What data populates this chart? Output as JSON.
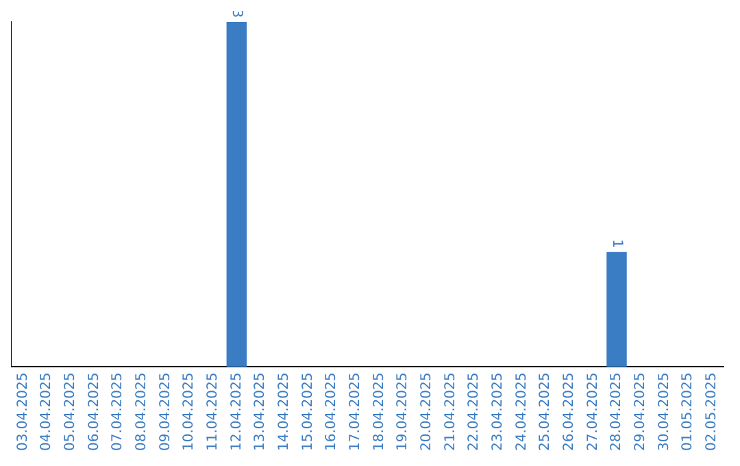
{
  "chart_data": {
    "type": "bar",
    "categories": [
      "03.04.2025",
      "04.04.2025",
      "05.04.2025",
      "06.04.2025",
      "07.04.2025",
      "08.04.2025",
      "09.04.2025",
      "10.04.2025",
      "11.04.2025",
      "12.04.2025",
      "13.04.2025",
      "14.04.2025",
      "15.04.2025",
      "16.04.2025",
      "17.04.2025",
      "18.04.2025",
      "19.04.2025",
      "20.04.2025",
      "21.04.2025",
      "22.04.2025",
      "23.04.2025",
      "24.04.2025",
      "25.04.2025",
      "26.04.2025",
      "27.04.2025",
      "28.04.2025",
      "29.04.2025",
      "30.04.2025",
      "01.05.2025",
      "02.05.2025"
    ],
    "values": [
      0,
      0,
      0,
      0,
      0,
      0,
      0,
      0,
      0,
      3,
      0,
      0,
      0,
      0,
      0,
      0,
      0,
      0,
      0,
      0,
      0,
      0,
      0,
      0,
      0,
      1,
      0,
      0,
      0,
      0
    ],
    "value_labels": [
      null,
      null,
      null,
      null,
      null,
      null,
      null,
      null,
      null,
      "3",
      null,
      null,
      null,
      null,
      null,
      null,
      null,
      null,
      null,
      null,
      null,
      null,
      null,
      null,
      null,
      "1",
      null,
      null,
      null,
      null
    ],
    "color": "#3b7dc4",
    "grid": false,
    "legend": false,
    "tick_labels": "x"
  }
}
